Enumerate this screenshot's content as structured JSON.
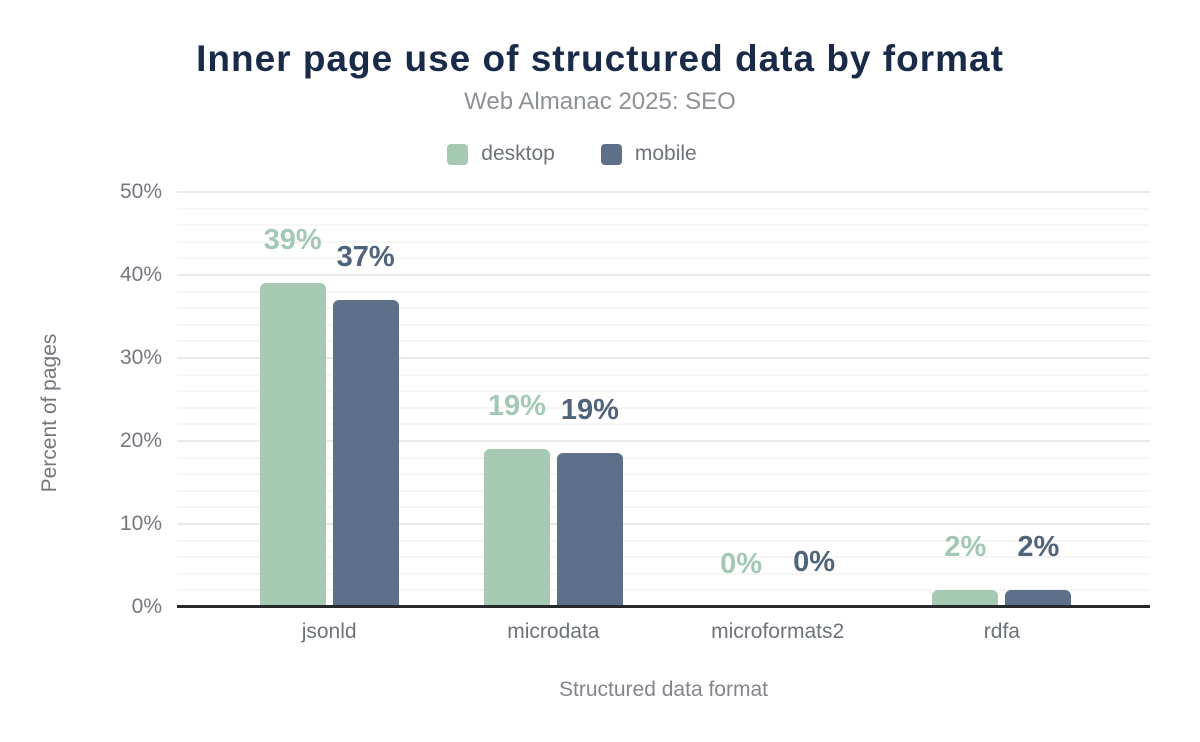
{
  "chart_data": {
    "type": "bar",
    "title": "Inner page use of structured data by format",
    "subtitle": "Web Almanac 2025: SEO",
    "xlabel": "Structured data format",
    "ylabel": "Percent of pages",
    "categories": [
      "jsonld",
      "microdata",
      "microformats2",
      "rdfa"
    ],
    "series": [
      {
        "name": "desktop",
        "color": "#a6c9b4",
        "label_color": "#a3c8b5",
        "values": [
          39,
          19,
          0,
          2
        ],
        "labels": [
          "39%",
          "19%",
          "0%",
          "2%"
        ]
      },
      {
        "name": "mobile",
        "color": "#5e7089",
        "label_color": "#4f637b",
        "values": [
          37,
          18.6,
          0.3,
          2
        ],
        "labels": [
          "37%",
          "19%",
          "0%",
          "2%"
        ]
      }
    ],
    "ylim": [
      0,
      50
    ],
    "yticks": [
      "0%",
      "10%",
      "20%",
      "30%",
      "40%",
      "50%"
    ],
    "ytick_step": 10,
    "grid": {
      "minor_step": 2,
      "major_step": 10,
      "orientation": "horizontal"
    },
    "legend_position": "top"
  },
  "colors": {
    "title": "#1a2b49",
    "subtitle": "#8d9196",
    "axis_text": "#74777e",
    "baseline": "#26292c",
    "grid_major": "#eaeaea",
    "grid_minor": "#f6f6f6"
  }
}
